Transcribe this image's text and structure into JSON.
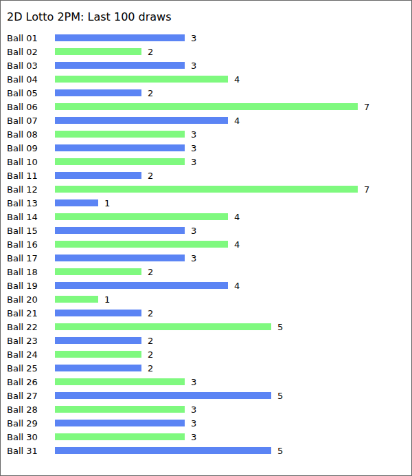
{
  "chart_data": {
    "type": "bar",
    "title": "2D Lotto 2PM: Last 100 draws",
    "orientation": "horizontal",
    "data_labels": true,
    "tick_labels": "y",
    "grid": false,
    "categories": [
      "Ball 01",
      "Ball 02",
      "Ball 03",
      "Ball 04",
      "Ball 05",
      "Ball 06",
      "Ball 07",
      "Ball 08",
      "Ball 09",
      "Ball 10",
      "Ball 11",
      "Ball 12",
      "Ball 13",
      "Ball 14",
      "Ball 15",
      "Ball 16",
      "Ball 17",
      "Ball 18",
      "Ball 19",
      "Ball 20",
      "Ball 21",
      "Ball 22",
      "Ball 23",
      "Ball 24",
      "Ball 25",
      "Ball 26",
      "Ball 27",
      "Ball 28",
      "Ball 29",
      "Ball 30",
      "Ball 31"
    ],
    "values": [
      3,
      2,
      3,
      4,
      2,
      7,
      4,
      3,
      3,
      3,
      2,
      7,
      1,
      4,
      3,
      4,
      3,
      2,
      4,
      1,
      2,
      5,
      2,
      2,
      2,
      3,
      5,
      3,
      3,
      3,
      5
    ],
    "colors": [
      "#5b84f4",
      "#7ff97f",
      "#5b84f4",
      "#7ff97f",
      "#5b84f4",
      "#7ff97f",
      "#5b84f4",
      "#7ff97f",
      "#5b84f4",
      "#7ff97f",
      "#5b84f4",
      "#7ff97f",
      "#5b84f4",
      "#7ff97f",
      "#5b84f4",
      "#7ff97f",
      "#5b84f4",
      "#7ff97f",
      "#5b84f4",
      "#7ff97f",
      "#5b84f4",
      "#7ff97f",
      "#5b84f4",
      "#7ff97f",
      "#5b84f4",
      "#7ff97f",
      "#5b84f4",
      "#7ff97f",
      "#5b84f4",
      "#7ff97f",
      "#5b84f4"
    ]
  }
}
